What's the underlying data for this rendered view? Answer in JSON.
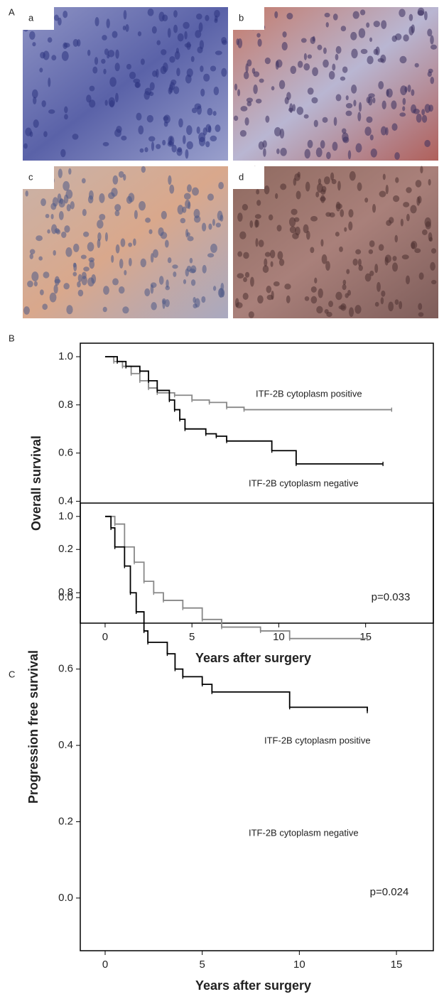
{
  "figure": {
    "panel_A": "A",
    "images": [
      "a",
      "b",
      "c",
      "d"
    ],
    "panel_B": "B",
    "panel_C": "C"
  },
  "chart_data": [
    {
      "type": "step",
      "ylabel": "Overall survival",
      "xlabel": "Years after surgery",
      "annotation": "p=0.033",
      "xlim": [
        -1.43,
        18.9
      ],
      "ylim": [
        -0.106,
        1.056
      ],
      "xticks": [
        0,
        5,
        10,
        15
      ],
      "yticks": [
        {
          "value": 0,
          "label": "0.0"
        },
        0.2,
        0.4,
        0.6,
        0.8,
        {
          "value": 1,
          "label": "1.0"
        }
      ],
      "series": [
        {
          "name": "ITF-2B cytoplasm positive",
          "color": "#888888",
          "x": [
            0,
            0.5,
            1,
            1.5,
            2,
            2.5,
            3,
            4,
            5,
            6,
            7,
            8,
            16.5
          ],
          "values": [
            1.0,
            0.98,
            0.96,
            0.93,
            0.9,
            0.87,
            0.85,
            0.84,
            0.82,
            0.81,
            0.79,
            0.78,
            0.78
          ]
        },
        {
          "name": "ITF-2B cytoplasm negative",
          "color": "#000000",
          "x": [
            0,
            0.7,
            1.2,
            2,
            2.5,
            3,
            3.7,
            4,
            4.3,
            4.6,
            5.8,
            6.4,
            7,
            9.6,
            11,
            16
          ],
          "values": [
            1.0,
            0.98,
            0.96,
            0.94,
            0.9,
            0.86,
            0.82,
            0.78,
            0.74,
            0.7,
            0.68,
            0.67,
            0.65,
            0.61,
            0.555,
            0.555
          ]
        }
      ]
    },
    {
      "type": "step",
      "ylabel": "Progression free survival",
      "xlabel": "Years after surgery",
      "annotation": "p=0.024",
      "xlim": [
        -1.28,
        16.9
      ],
      "ylim": [
        -0.138,
        1.035
      ],
      "xticks": [
        0,
        5,
        10,
        15
      ],
      "yticks": [
        {
          "value": 0,
          "label": "0.0"
        },
        0.2,
        0.4,
        0.6,
        0.8,
        {
          "value": 1,
          "label": "1.0"
        }
      ],
      "series": [
        {
          "name": "ITF-2B cytoplasm positive",
          "color": "#888888",
          "x": [
            0,
            0.5,
            1,
            1.5,
            2,
            2.5,
            3,
            4,
            5,
            6,
            8,
            9.5,
            13.5
          ],
          "values": [
            1.0,
            0.98,
            0.92,
            0.88,
            0.83,
            0.8,
            0.78,
            0.76,
            0.73,
            0.71,
            0.7,
            0.68,
            0.68
          ]
        },
        {
          "name": "ITF-2B cytoplasm negative",
          "color": "#000000",
          "x": [
            0,
            0.3,
            0.5,
            1,
            1.3,
            1.6,
            2,
            2.2,
            3.2,
            3.6,
            4,
            5,
            5.5,
            9.5,
            13.5
          ],
          "values": [
            1.0,
            0.97,
            0.92,
            0.87,
            0.8,
            0.75,
            0.7,
            0.67,
            0.64,
            0.6,
            0.58,
            0.56,
            0.54,
            0.5,
            0.49
          ]
        }
      ]
    }
  ]
}
